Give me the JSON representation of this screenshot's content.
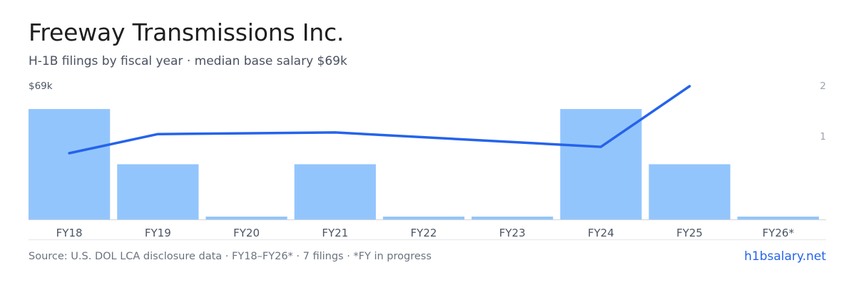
{
  "header": {
    "title": "Freeway Transmissions Inc.",
    "subtitle": "H-1B filings by fiscal year · median base salary $69k"
  },
  "footer": {
    "source": "Source: U.S. DOL LCA disclosure data · FY18–FY26* · 7 filings · *FY in progress",
    "link": "h1bsalary.net"
  },
  "colors": {
    "bar": "#93c5fd",
    "line": "#2563eb",
    "axis": "#d1d5db",
    "tick_text": "#4b5563",
    "right_tick_text": "#9ca3af"
  },
  "chart_data": {
    "type": "bar",
    "categories": [
      "FY18",
      "FY19",
      "FY20",
      "FY21",
      "FY22",
      "FY23",
      "FY24",
      "FY25",
      "FY26*"
    ],
    "series": [
      {
        "type": "bar",
        "axis": "right",
        "values": [
          2,
          1,
          0,
          1,
          0,
          0,
          2,
          1,
          0
        ]
      },
      {
        "type": "line",
        "axis": "left",
        "values": [
          62,
          68,
          null,
          68.5,
          null,
          null,
          64,
          83,
          null
        ]
      }
    ],
    "left_axis": {
      "top_label": "$69k"
    },
    "right_axis": {
      "ticks": [
        "1",
        "2"
      ],
      "ylim": [
        0,
        2
      ]
    },
    "grid": false,
    "legend": "none"
  }
}
